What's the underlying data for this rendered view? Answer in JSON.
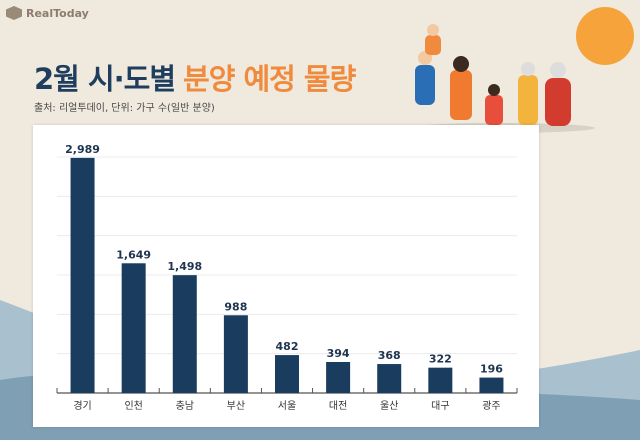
{
  "logo": {
    "text": "RealToday"
  },
  "title": {
    "part1": "2월 시·도별",
    "part2": "분양 예정 물량"
  },
  "subtitle": "출처: 리얼투데이, 단위: 가구 수(일반 분양)",
  "colors": {
    "bar": "#1a3d5f",
    "title_navy": "#1f3d5e",
    "title_orange": "#f08a3c",
    "background": "#efe9de"
  },
  "chart_data": {
    "type": "bar",
    "title": "2월 시·도별 분양 예정 물량",
    "categories": [
      "경기",
      "인천",
      "충남",
      "부산",
      "서울",
      "대전",
      "울산",
      "대구",
      "광주"
    ],
    "values": [
      2989,
      1649,
      1498,
      988,
      482,
      394,
      368,
      322,
      196
    ],
    "data_labels": [
      "2,989",
      "1,649",
      "1,498",
      "988",
      "482",
      "394",
      "368",
      "322",
      "196"
    ],
    "ylim": [
      0,
      3000
    ],
    "grid_step": 500,
    "grid": true,
    "y_tick_labels_shown": false
  }
}
